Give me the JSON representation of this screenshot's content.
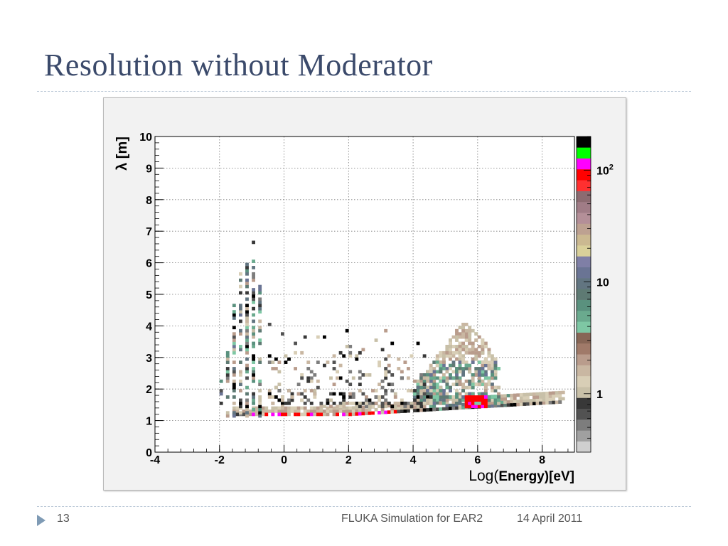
{
  "slide": {
    "title": "Resolution without Moderator",
    "page_number": "13",
    "footer": "FLUKA Simulation for EAR2",
    "date": "14 April 2011"
  },
  "chart_data": {
    "type": "heatmap",
    "title": "",
    "xlabel_prefix": "Log(",
    "xlabel_bold": "Energy)[eV]",
    "ylabel": "λ [m]",
    "xlim": [
      -4,
      9
    ],
    "ylim": [
      0,
      10
    ],
    "x_ticks": [
      "-4",
      "-2",
      "0",
      "2",
      "4",
      "6",
      "8"
    ],
    "y_ticks": [
      "0",
      "1",
      "2",
      "3",
      "4",
      "5",
      "6",
      "7",
      "8",
      "9",
      "10"
    ],
    "grid": true,
    "colorbar": {
      "scale": "log",
      "labels": [
        {
          "text": "1",
          "value": 1
        },
        {
          "text": "10",
          "value": 10
        },
        {
          "text": "10",
          "sup": "2",
          "value": 100
        }
      ],
      "colors": [
        "#cfcfcf",
        "#a0a0a0",
        "#7d7d7d",
        "#525252",
        "#383838",
        "#c8c0a8",
        "#d8ceb6",
        "#c9b7a2",
        "#b99c8c",
        "#a07a69",
        "#876656",
        "#7ec7a4",
        "#6aaa8e",
        "#5a917e",
        "#5e7a73",
        "#627581",
        "#6a7494",
        "#7f7fa6",
        "#d9d09a",
        "#cbb991",
        "#bda191",
        "#b48f98",
        "#a07c86",
        "#8c6b71",
        "#ff3030",
        "#ff0000",
        "#ff00ff",
        "#00ff00",
        "#000000"
      ]
    },
    "series": [
      {
        "name": "",
        "region": "main-band",
        "x_range": [
          -2.0,
          8.6
        ],
        "y_range": [
          1.0,
          1.9
        ]
      },
      {
        "name": "",
        "region": "hot-spot",
        "x_range": [
          5.6,
          6.2
        ],
        "y_range": [
          1.4,
          1.8
        ]
      },
      {
        "name": "",
        "region": "plume",
        "x_range": [
          4.0,
          6.6
        ],
        "y_range": [
          1.5,
          4.5
        ]
      },
      {
        "name": "",
        "region": "low-energy-columns",
        "x_range": [
          -2.1,
          -0.7
        ],
        "y_range": [
          1.1,
          6.8
        ]
      }
    ]
  }
}
